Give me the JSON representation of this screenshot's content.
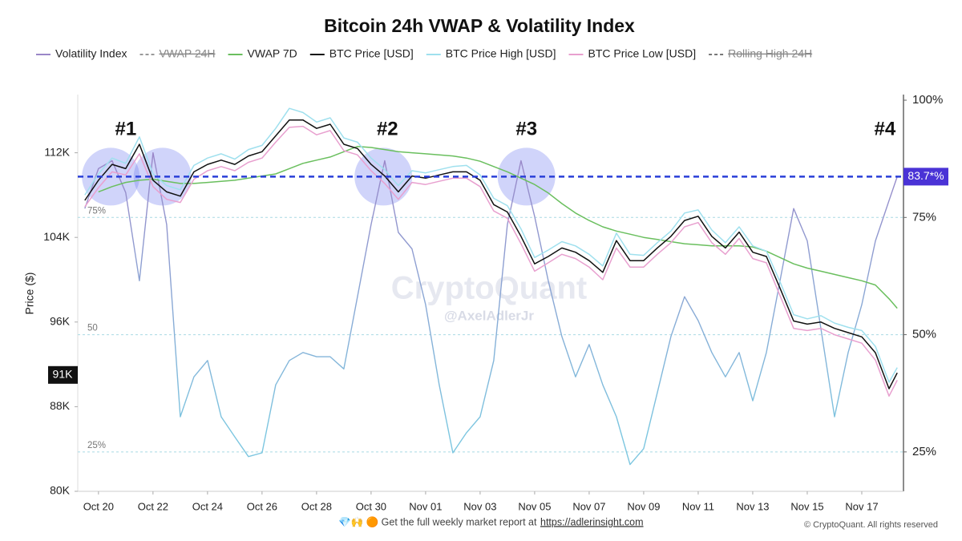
{
  "chart_data": {
    "type": "line",
    "title": "Bitcoin 24h VWAP & Volatility Index",
    "y_label": "Price ($)",
    "x": [
      0.5,
      1,
      1.5,
      2,
      2.5,
      3,
      3.5,
      4,
      4.5,
      5,
      5.5,
      6,
      6.5,
      7,
      7.5,
      8,
      8.5,
      9,
      9.5,
      10,
      10.5,
      11,
      11.5,
      12,
      12.5,
      13,
      13.5,
      14,
      14.5,
      15,
      15.5,
      16,
      16.5,
      17,
      17.5,
      18,
      18.5,
      19,
      19.5,
      20,
      20.5,
      21,
      21.5,
      22,
      22.5,
      23,
      23.5,
      24,
      24.5,
      25,
      25.5,
      26,
      26.5,
      27,
      27.5,
      28,
      28.5,
      29,
      29.5,
      30,
      30.3
    ],
    "xlim": [
      0.24,
      30.53
    ],
    "xticks": [
      {
        "value": 1,
        "label": "Oct 20"
      },
      {
        "value": 3,
        "label": "Oct 22"
      },
      {
        "value": 5,
        "label": "Oct 24"
      },
      {
        "value": 7,
        "label": "Oct 26"
      },
      {
        "value": 9,
        "label": "Oct 28"
      },
      {
        "value": 11,
        "label": "Oct 30"
      },
      {
        "value": 13,
        "label": "Nov 01"
      },
      {
        "value": 15,
        "label": "Nov 03"
      },
      {
        "value": 17,
        "label": "Nov 05"
      },
      {
        "value": 19,
        "label": "Nov 07"
      },
      {
        "value": 21,
        "label": "Nov 09"
      },
      {
        "value": 23,
        "label": "Nov 11"
      },
      {
        "value": 25,
        "label": "Nov 13"
      },
      {
        "value": 27,
        "label": "Nov 15"
      },
      {
        "value": 29,
        "label": "Nov 17"
      }
    ],
    "ylim": [
      80000,
      117500
    ],
    "yticks": [
      {
        "value": 80000,
        "label": "80K"
      },
      {
        "value": 88000,
        "label": "88K"
      },
      {
        "value": 96000,
        "label": "96K"
      },
      {
        "value": 104000,
        "label": "104K"
      },
      {
        "value": 112000,
        "label": "112K"
      }
    ],
    "y2lim": [
      16.6,
      101.2
    ],
    "y2ticks": [
      {
        "value": 25,
        "label": "25%"
      },
      {
        "value": 50,
        "label": "50%"
      },
      {
        "value": 75,
        "label": "75%"
      },
      {
        "value": 100,
        "label": "100%"
      }
    ],
    "y2_guides": [
      {
        "value": 75,
        "label": "75%"
      },
      {
        "value": 50,
        "label": "50"
      },
      {
        "value": 25,
        "label": "25%"
      }
    ],
    "reference_line": {
      "value": 83.7,
      "label": "83.7*%",
      "color": "#2a3fd8"
    },
    "last_price": {
      "value": 91000,
      "label": "91K"
    },
    "annotations": [
      {
        "text": "#1",
        "x": 2
      },
      {
        "text": "#2",
        "x": 11.6
      },
      {
        "text": "#3",
        "x": 16.7
      },
      {
        "text": "#4",
        "x": 29.85
      }
    ],
    "highlights": [
      1.45,
      3.35,
      11.45,
      16.7
    ],
    "series": [
      {
        "name": "Volatility Index",
        "color": "#9a86c8",
        "color_low": "#7cc6e0",
        "axis": "y2",
        "values": [
          76.9,
          85.4,
          87.1,
          80.3,
          61.5,
          88.8,
          73.5,
          32.5,
          41,
          44.5,
          32.5,
          28.2,
          24,
          24.8,
          39.3,
          44.5,
          46.2,
          45.3,
          45.3,
          42.7,
          58.1,
          73.5,
          87.1,
          71.8,
          68.3,
          56.4,
          39.3,
          24.8,
          29.1,
          32.5,
          44.5,
          73.5,
          87.1,
          75.2,
          61.5,
          49.6,
          41,
          47.9,
          39.3,
          32.5,
          22.3,
          25.7,
          37.6,
          49.6,
          58.1,
          53,
          46.2,
          41,
          46.2,
          35.9,
          46.2,
          61.5,
          76.9,
          70,
          51.3,
          32.5,
          46.2,
          56.4,
          70,
          78.6,
          83.7
        ]
      },
      {
        "name": "VWAP 24H",
        "color": "#999999",
        "hidden": true
      },
      {
        "name": "VWAP 7D",
        "color": "#6abf5e",
        "values": [
          null,
          108300,
          108800,
          109200,
          109400,
          109500,
          109300,
          109100,
          109100,
          109200,
          109300,
          109400,
          109600,
          109800,
          110000,
          110500,
          111000,
          111300,
          111600,
          112100,
          112600,
          112500,
          112300,
          112100,
          112000,
          111900,
          111800,
          111700,
          111500,
          111200,
          110700,
          110200,
          109600,
          109000,
          108200,
          107200,
          106300,
          105600,
          105000,
          104600,
          104300,
          104000,
          103800,
          103600,
          103400,
          103300,
          103200,
          103200,
          103200,
          103100,
          102700,
          102100,
          101500,
          101100,
          100800,
          100500,
          100200,
          99900,
          99500,
          98200,
          97300
        ]
      },
      {
        "name": "BTC Price [USD]",
        "color": "#111111",
        "values": [
          107500,
          109400,
          110900,
          110500,
          112800,
          109400,
          108300,
          107900,
          110200,
          110900,
          111300,
          110900,
          111700,
          112100,
          113600,
          115100,
          115100,
          114300,
          114700,
          112800,
          112400,
          110900,
          109800,
          108300,
          109800,
          109600,
          109900,
          110200,
          110200,
          109400,
          107100,
          106400,
          104100,
          101500,
          102200,
          103000,
          102600,
          101800,
          100700,
          103700,
          101800,
          101800,
          103000,
          104100,
          105600,
          106000,
          104100,
          103000,
          104500,
          102600,
          102200,
          99200,
          96100,
          95800,
          96000,
          95400,
          95000,
          94600,
          93100,
          89700,
          91200
        ]
      },
      {
        "name": "BTC Price High [USD]",
        "color": "#9fe0ee",
        "values": [
          108000,
          110000,
          111500,
          111000,
          113500,
          110000,
          108900,
          108500,
          110800,
          111500,
          111900,
          111400,
          112300,
          112700,
          114300,
          116200,
          115800,
          114900,
          115300,
          113400,
          113000,
          111500,
          110400,
          108900,
          110300,
          110100,
          110400,
          110700,
          110800,
          109900,
          107700,
          107000,
          104800,
          102100,
          102800,
          103600,
          103200,
          102400,
          101300,
          104400,
          102400,
          102300,
          103500,
          104600,
          106300,
          106600,
          104700,
          103500,
          105000,
          103200,
          102700,
          99800,
          96700,
          96300,
          96600,
          95900,
          95500,
          95200,
          93700,
          90300,
          91700
        ]
      },
      {
        "name": "BTC Price Low [USD]",
        "color": "#e8a0cf",
        "values": [
          106900,
          108700,
          110200,
          109900,
          111900,
          108800,
          107600,
          107300,
          109500,
          110300,
          110700,
          110300,
          111100,
          111500,
          113000,
          114400,
          114500,
          113700,
          114100,
          112200,
          111800,
          110300,
          109100,
          107600,
          109200,
          109000,
          109300,
          109600,
          109600,
          108800,
          106500,
          105800,
          103400,
          100800,
          101600,
          102400,
          102000,
          101200,
          100000,
          103000,
          101200,
          101200,
          102400,
          103500,
          105000,
          105400,
          103500,
          102400,
          103900,
          102000,
          101600,
          98500,
          95400,
          95200,
          95400,
          94800,
          94400,
          94000,
          92400,
          89000,
          90500
        ]
      },
      {
        "name": "Rolling High 24H",
        "color": "#777777",
        "hidden": true
      }
    ],
    "watermark": "CryptoQuant",
    "author": "@AxelAdlerJr",
    "footer_text": "💎🙌 🟠 Get the full weekly market report at",
    "footer_link": "https://adlerinsight.com",
    "copyright": "© CryptoQuant. All rights reserved"
  }
}
